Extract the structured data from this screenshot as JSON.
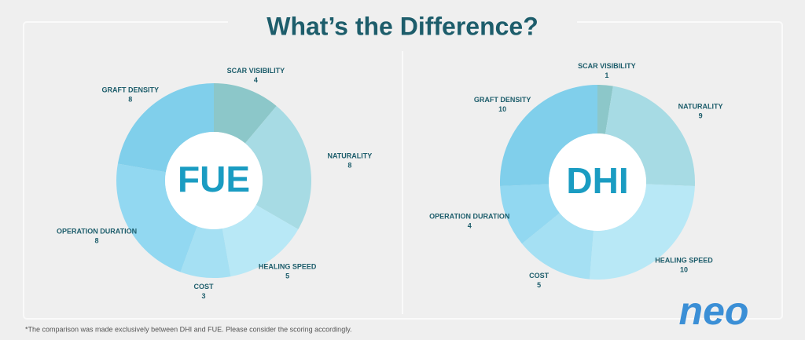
{
  "title": "What’s the Difference?",
  "footnote": "*The comparison was made exclusively between DHI and FUE. Please consider the scoring accordingly.",
  "logo": "neo",
  "chart_data": [
    {
      "type": "donut",
      "center_label": "FUE",
      "categories": [
        "SCAR VISIBILITY",
        "NATURALITY",
        "HEALING SPEED",
        "COST",
        "OPERATION DURATION",
        "GRAFT DENSITY"
      ],
      "values": [
        4,
        8,
        5,
        3,
        8,
        8
      ],
      "colors": [
        "#8cc7c9",
        "#a7dbe4",
        "#b8e8f6",
        "#a5e0f3",
        "#92d8f1",
        "#80cfeb"
      ]
    },
    {
      "type": "donut",
      "center_label": "DHI",
      "categories": [
        "SCAR VISIBILITY",
        "NATURALITY",
        "HEALING SPEED",
        "COST",
        "OPERATION DURATION",
        "GRAFT DENSITY"
      ],
      "values": [
        1,
        9,
        10,
        5,
        4,
        10
      ],
      "colors": [
        "#8cc7c9",
        "#a7dbe4",
        "#b8e8f6",
        "#a5e0f3",
        "#92d8f1",
        "#80cfeb"
      ]
    }
  ]
}
